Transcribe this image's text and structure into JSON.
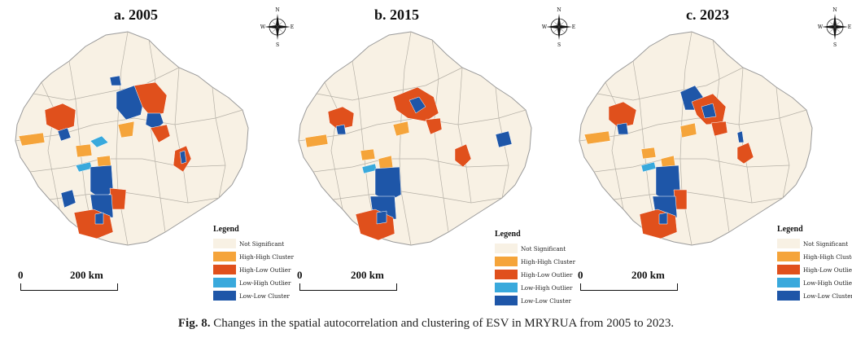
{
  "panels": [
    {
      "title": "a. 2005",
      "legend_title": "Legend",
      "scale_zero": "0",
      "scale_label": "200 km"
    },
    {
      "title": "b. 2015",
      "legend_title": "Legend",
      "scale_zero": "0",
      "scale_label": "200 km"
    },
    {
      "title": "c. 2023",
      "legend_title": "Legend",
      "scale_zero": "0",
      "scale_label": "200 km"
    }
  ],
  "legend_items": [
    {
      "label": "Not Significant",
      "color": "#f8f1e4"
    },
    {
      "label": "High-High Cluster",
      "color": "#f5a43a"
    },
    {
      "label": "High-Low Outlier",
      "color": "#e0501c"
    },
    {
      "label": "Low-High Outlier",
      "color": "#39a9dc"
    },
    {
      "label": "Low-Low Cluster",
      "color": "#1e56a8"
    }
  ],
  "compass": {
    "n": "N",
    "s": "S",
    "e": "E",
    "w": "W"
  },
  "caption": {
    "label": "Fig. 8.",
    "text": "Changes in the spatial autocorrelation and clustering of ESV in MRYRUA from 2005 to 2023."
  }
}
